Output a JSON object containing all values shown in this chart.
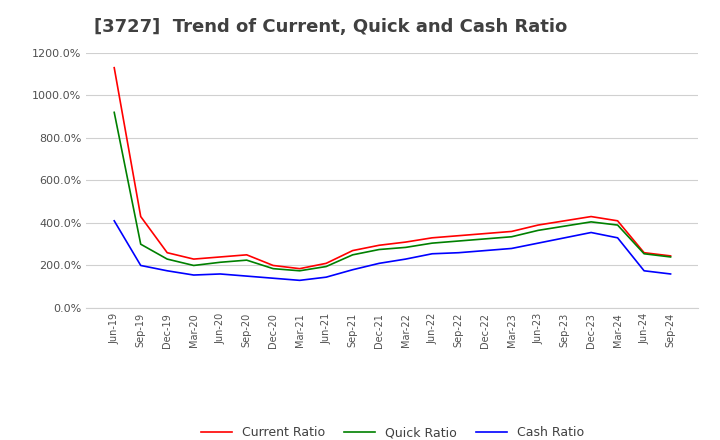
{
  "title": "[3727]  Trend of Current, Quick and Cash Ratio",
  "x_labels": [
    "Jun-19",
    "Sep-19",
    "Dec-19",
    "Mar-20",
    "Jun-20",
    "Sep-20",
    "Dec-20",
    "Mar-21",
    "Jun-21",
    "Sep-21",
    "Dec-21",
    "Mar-22",
    "Jun-22",
    "Sep-22",
    "Dec-22",
    "Mar-23",
    "Jun-23",
    "Sep-23",
    "Dec-23",
    "Mar-24",
    "Jun-24",
    "Sep-24"
  ],
  "current_ratio": [
    1130,
    430,
    260,
    230,
    240,
    250,
    200,
    185,
    210,
    270,
    295,
    310,
    330,
    340,
    350,
    360,
    390,
    410,
    430,
    410,
    260,
    245
  ],
  "quick_ratio": [
    920,
    300,
    230,
    200,
    215,
    225,
    185,
    175,
    195,
    250,
    275,
    285,
    305,
    315,
    325,
    335,
    365,
    385,
    405,
    390,
    255,
    240
  ],
  "cash_ratio": [
    410,
    200,
    175,
    155,
    160,
    150,
    140,
    130,
    145,
    180,
    210,
    230,
    255,
    260,
    270,
    280,
    305,
    330,
    355,
    330,
    175,
    160
  ],
  "ylim": [
    0,
    1200
  ],
  "yticks": [
    0,
    200,
    400,
    600,
    800,
    1000,
    1200
  ],
  "line_colors": {
    "current": "#ff0000",
    "quick": "#008000",
    "cash": "#0000ff"
  },
  "legend_labels": [
    "Current Ratio",
    "Quick Ratio",
    "Cash Ratio"
  ],
  "background_color": "#ffffff",
  "grid_color": "#d0d0d0",
  "title_color": "#404040",
  "title_fontsize": 13
}
